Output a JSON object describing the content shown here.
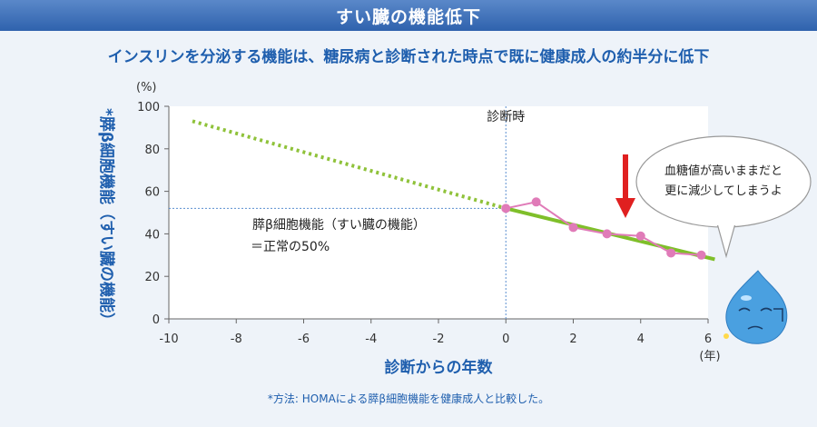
{
  "header": {
    "title": "すい臓の機能低下"
  },
  "subtitle": "インスリンを分泌する機能は、糖尿病と診断された時点で既に健康成人の約半分に低下",
  "footnote": "*方法: HOMAによる膵β細胞機能を健康成人と比較した。",
  "colors": {
    "header": "#3a6db5",
    "title_text": "#1f5fae",
    "extrapolation": "#8fc23a",
    "observed": "#e07bb8",
    "trend": "#7fbf2a",
    "arrow": "#e02020",
    "droplet": "#4aa0e0"
  },
  "chart_data": {
    "type": "line",
    "xlabel": "診断からの年数",
    "xunit": "(年)",
    "ylabel": "*膵β細胞機能（すい臓の機能）",
    "yunit": "(%)",
    "xlim": [
      -10,
      6
    ],
    "ylim": [
      0,
      100
    ],
    "xticks": [
      -10,
      -8,
      -6,
      -4,
      -2,
      0,
      2,
      4,
      6
    ],
    "yticks": [
      0,
      20,
      40,
      60,
      80,
      100
    ],
    "grid": false,
    "series": [
      {
        "style": "dotted",
        "x": [
          -9.3,
          0
        ],
        "y": [
          93,
          52
        ]
      },
      {
        "style": "solid",
        "x": [
          0,
          6.2
        ],
        "y": [
          52,
          28
        ]
      },
      {
        "style": "markers",
        "x": [
          0,
          0.9,
          2,
          3,
          4,
          4.9,
          5.8
        ],
        "y": [
          52,
          55,
          43,
          40,
          39,
          31,
          30
        ]
      }
    ],
    "annotations": [
      {
        "text": "診断時",
        "x": 0
      },
      {
        "text": "膵β細胞機能（すい臓の機能）",
        "line": 1
      },
      {
        "text": "＝正常の50%",
        "line": 2
      },
      {
        "reference_y": 52
      }
    ],
    "callout": {
      "line1": "血糖値が高いままだと",
      "line2": "更に減少してしまうよ"
    }
  }
}
